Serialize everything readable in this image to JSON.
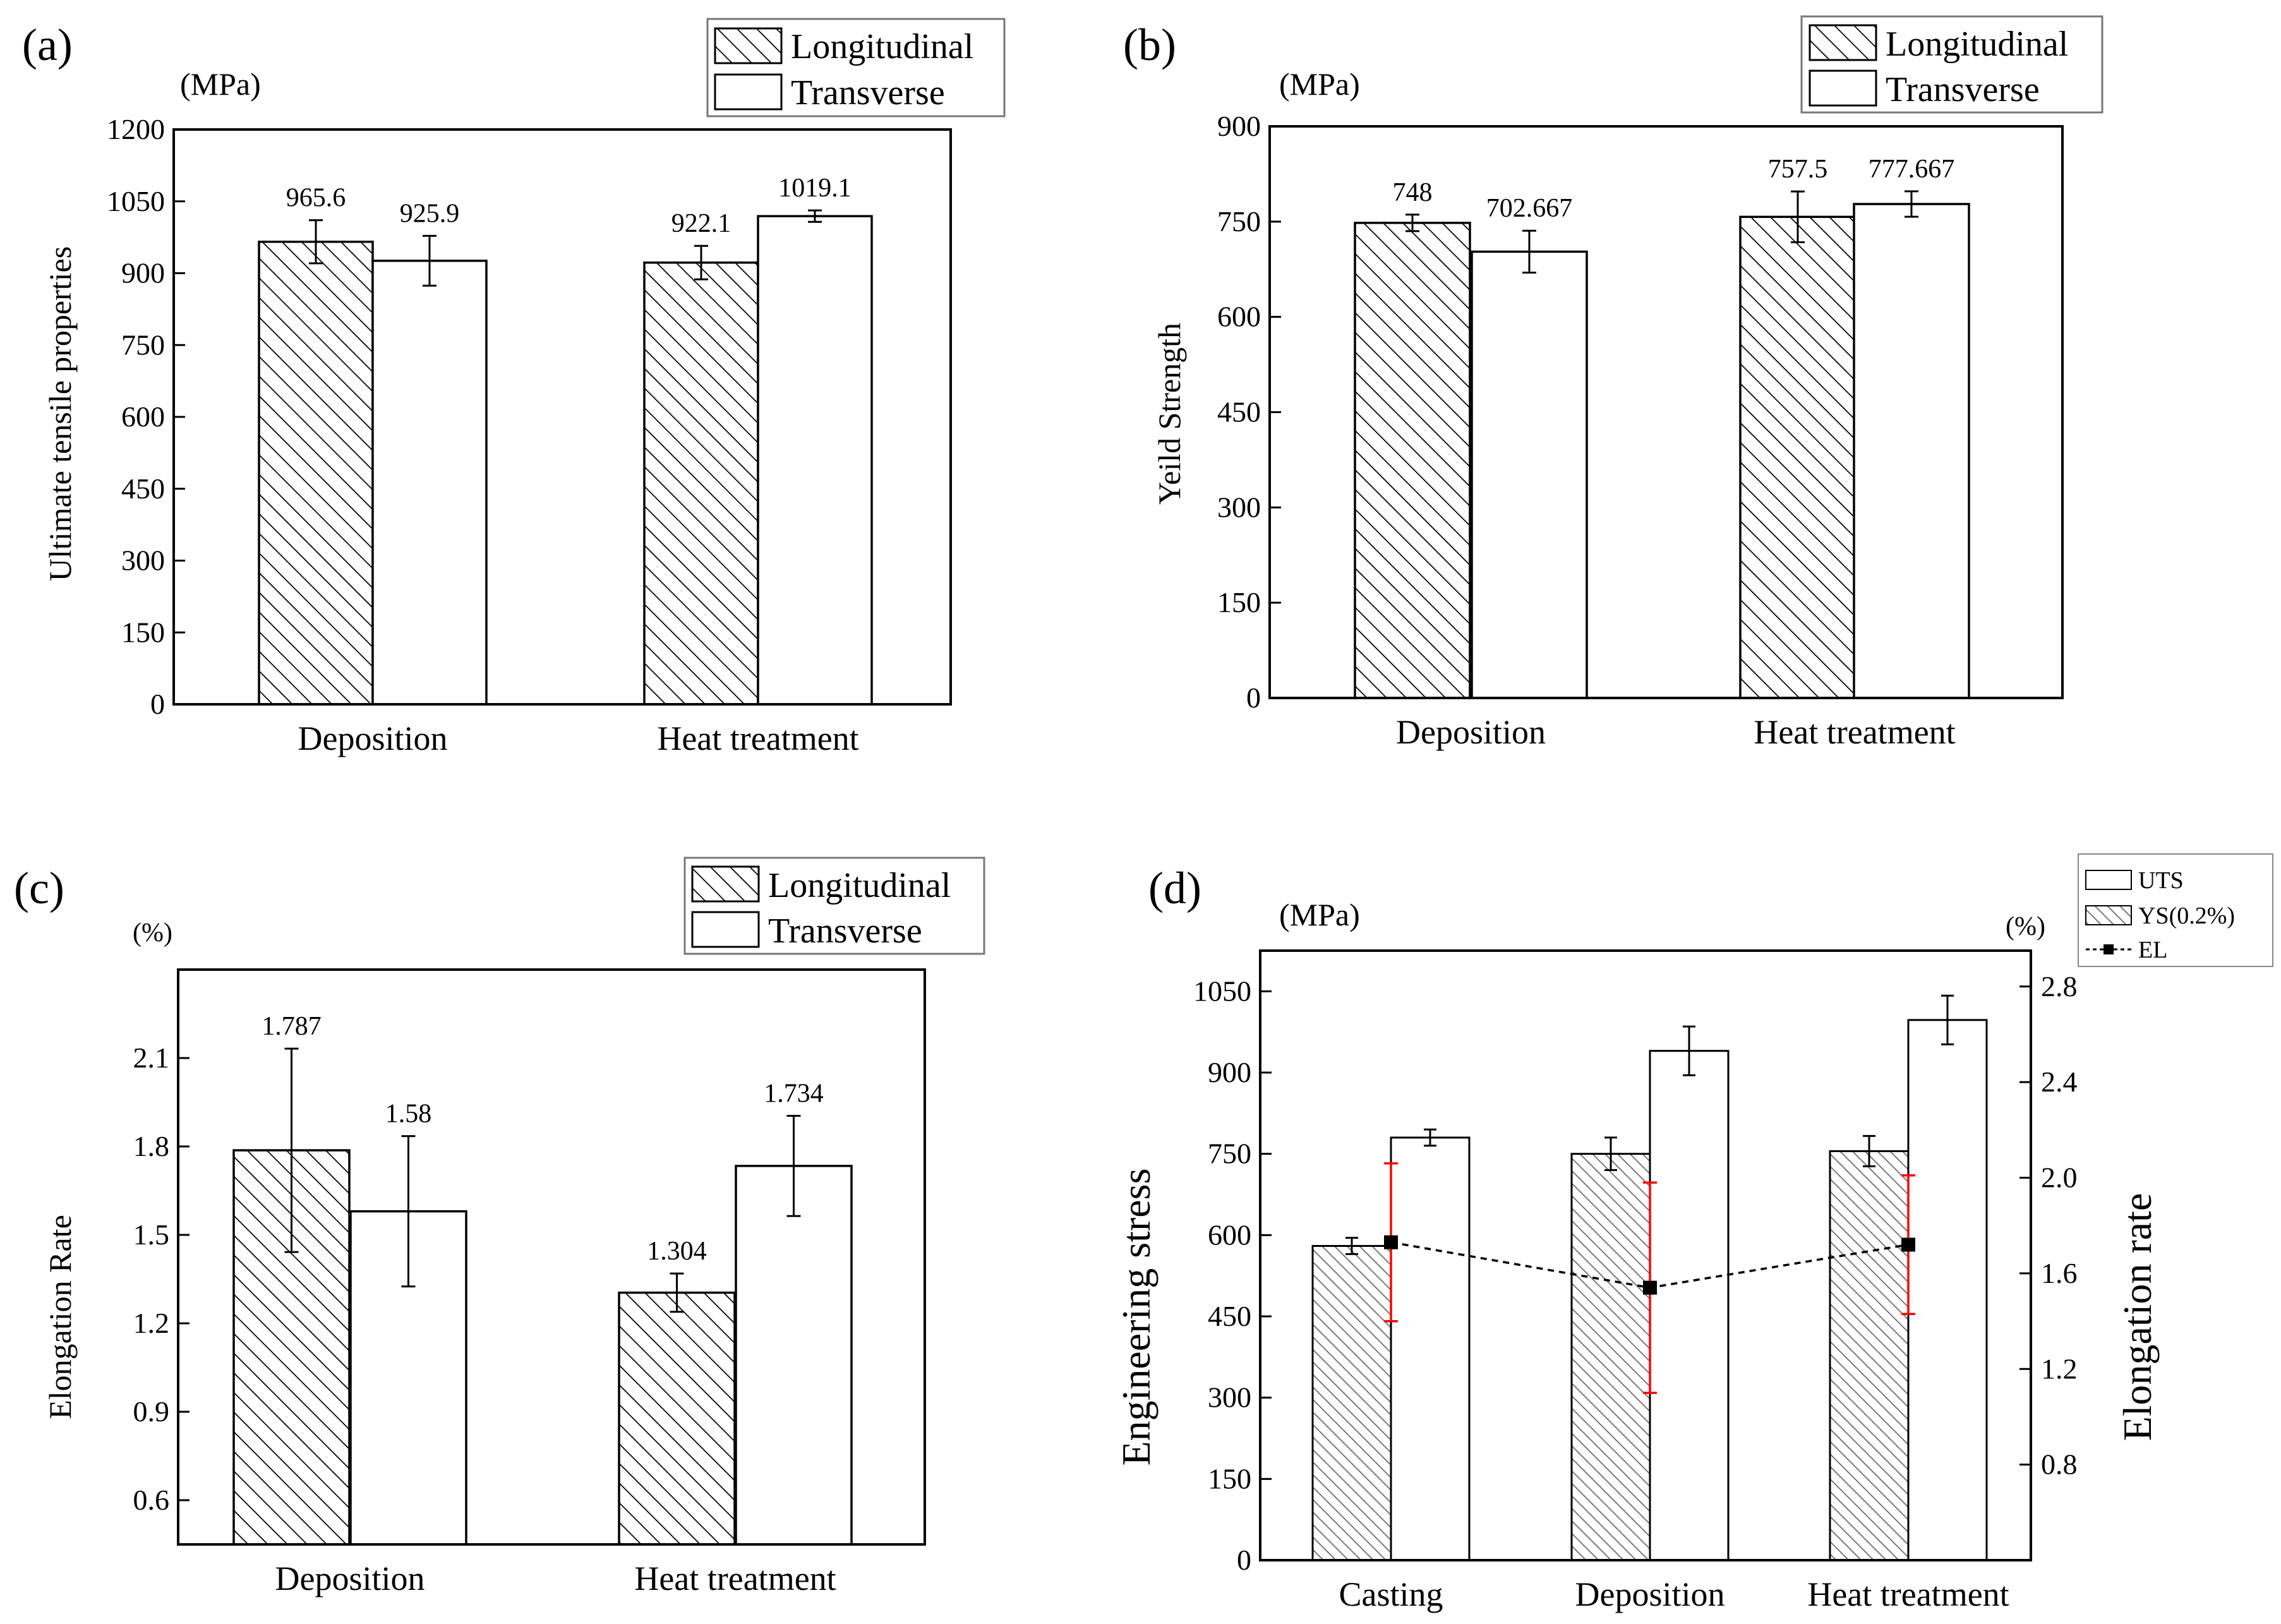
{
  "chart_data": [
    {
      "panel": "(a)",
      "type": "bar",
      "unit": "(MPa)",
      "ylabel": "Ultimate tensile properties",
      "ylim": [
        0,
        1200
      ],
      "yticks": [
        0,
        150,
        300,
        450,
        600,
        750,
        900,
        1050,
        1200
      ],
      "categories": [
        "Deposition",
        "Heat treatment"
      ],
      "series": [
        {
          "name": "Longitudinal",
          "pattern": "hatch",
          "values": [
            965.6,
            922.1
          ],
          "errors": [
            45,
            35
          ],
          "labels": [
            "965.6",
            "922.1"
          ]
        },
        {
          "name": "Transverse",
          "pattern": "plain",
          "values": [
            925.9,
            1019.1
          ],
          "errors": [
            52,
            12
          ],
          "labels": [
            "925.9",
            "1019.1"
          ]
        }
      ],
      "legend": "top-right, outside"
    },
    {
      "panel": "(b)",
      "type": "bar",
      "unit": "(MPa)",
      "ylabel": "Yeild Strength",
      "ylim": [
        0,
        900
      ],
      "yticks": [
        0,
        150,
        300,
        450,
        600,
        750,
        900
      ],
      "categories": [
        "Deposition",
        "Heat treatment"
      ],
      "series": [
        {
          "name": "Longitudinal",
          "pattern": "hatch",
          "values": [
            748,
            757.5
          ],
          "errors": [
            13,
            40
          ],
          "labels": [
            "748",
            "757.5"
          ]
        },
        {
          "name": "Transverse",
          "pattern": "plain",
          "values": [
            702.667,
            777.667
          ],
          "errors": [
            33,
            20
          ],
          "labels": [
            "702.667",
            "777.667"
          ]
        }
      ],
      "legend": "top-right, outside"
    },
    {
      "panel": "(c)",
      "type": "bar",
      "unit": "(%)",
      "ylabel": "Elongation Rate",
      "ylim": [
        0.45,
        2.4
      ],
      "yticks": [
        0.6,
        0.9,
        1.2,
        1.5,
        1.8,
        2.1
      ],
      "categories": [
        "Deposition",
        "Heat treatment"
      ],
      "series": [
        {
          "name": "Longitudinal",
          "pattern": "hatch",
          "values": [
            1.787,
            1.304
          ],
          "errors": [
            0.345,
            0.065
          ],
          "labels": [
            "1.787",
            "1.304"
          ]
        },
        {
          "name": "Transverse",
          "pattern": "plain",
          "values": [
            1.58,
            1.734
          ],
          "errors": [
            0.255,
            0.17
          ],
          "labels": [
            "1.58",
            "1.734"
          ]
        }
      ],
      "legend": "top-right, outside"
    },
    {
      "panel": "(d)",
      "type": "bar",
      "unit_left": "(MPa)",
      "unit_right": "(%)",
      "ylabel_left": "Engineering stress",
      "ylabel_right": "Elongation rate",
      "ylim_left": [
        0,
        1125
      ],
      "yticks_left": [
        0,
        150,
        300,
        450,
        600,
        750,
        900,
        1050
      ],
      "ylim_right": [
        0.4,
        2.95
      ],
      "yticks_right": [
        0.8,
        1.2,
        1.6,
        2.0,
        2.4,
        2.8
      ],
      "categories": [
        "Casting",
        "Deposition",
        "Heat treatment"
      ],
      "series": [
        {
          "name": "YS(0.2%)",
          "pattern": "hatch",
          "axis": "left",
          "values": [
            580,
            750,
            755
          ],
          "errors": [
            15,
            30,
            28
          ]
        },
        {
          "name": "UTS",
          "pattern": "plain",
          "axis": "left",
          "values": [
            780,
            940,
            997
          ],
          "errors": [
            15,
            45,
            45
          ]
        },
        {
          "name": "EL",
          "type": "line",
          "style": "dashed",
          "marker": "square",
          "axis": "right",
          "values": [
            1.73,
            1.54,
            1.72
          ],
          "errors": [
            0.33,
            0.44,
            0.29
          ],
          "error_color": "#ff0000"
        }
      ],
      "legend": "top-right, outside"
    }
  ]
}
